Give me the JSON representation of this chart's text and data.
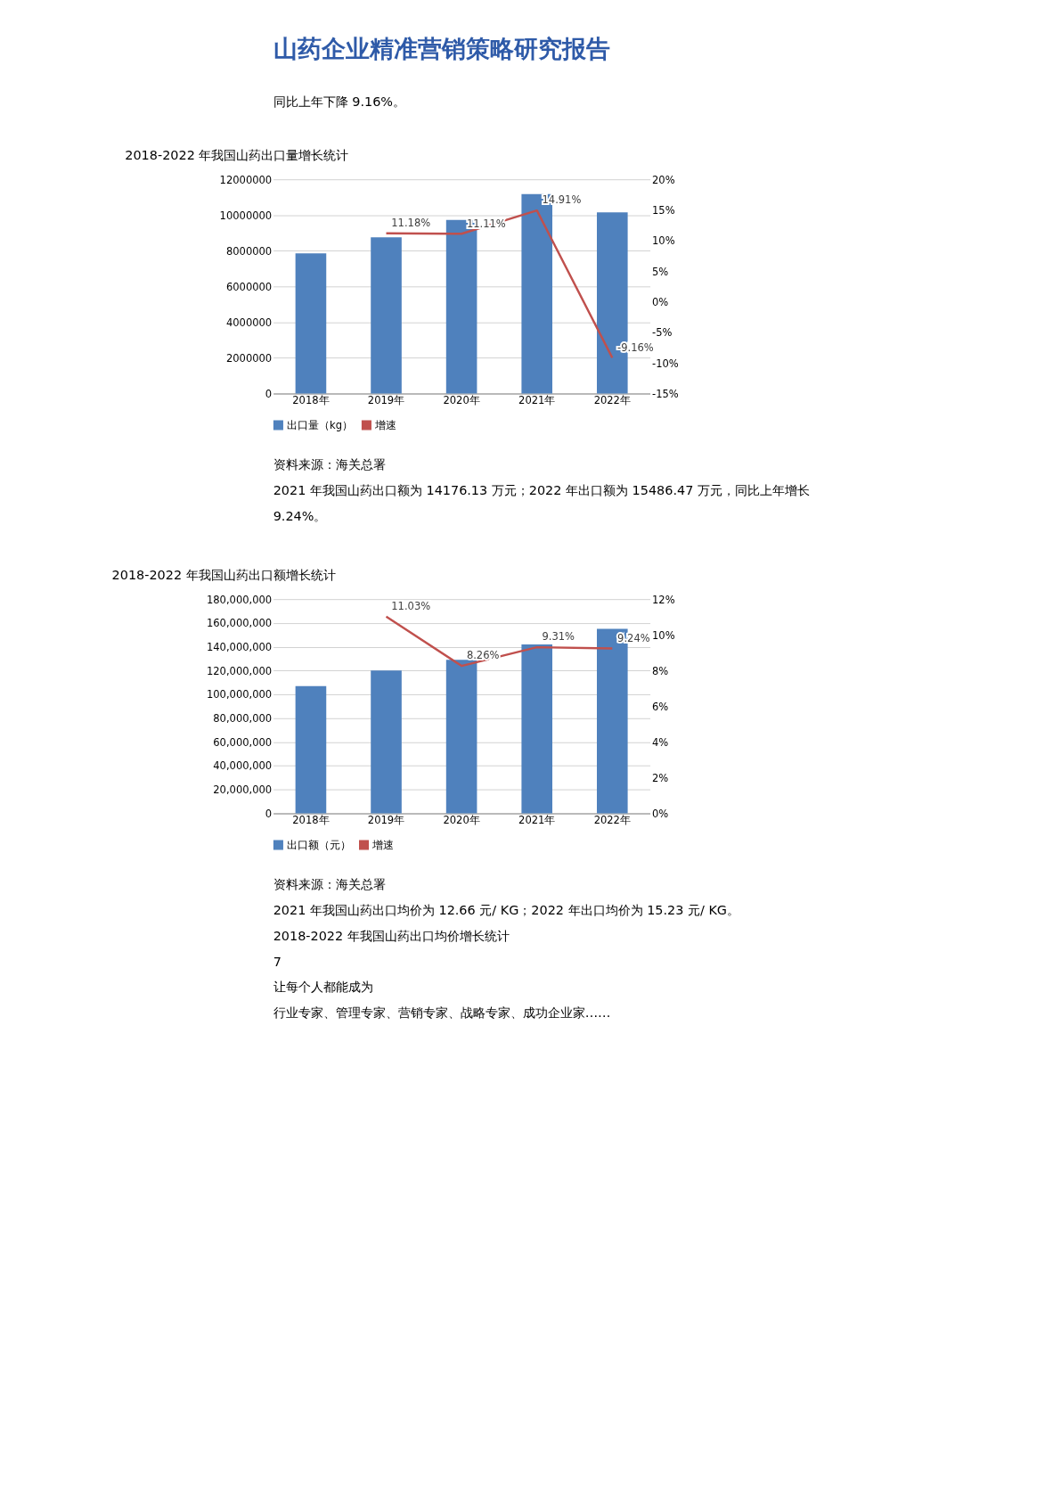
{
  "chart_data": [
    {
      "type": "other",
      "title": "山药企业精准营销策略研究报告",
      "annotations": [
        "同比上年下降 9.16%。"
      ]
    },
    {
      "type": "bar",
      "title": "2018-2022 年我国山药出口量增长统计",
      "categories": [
        "2018年",
        "2019年",
        "2020年",
        "2021年",
        "2022年"
      ],
      "series": [
        {
          "name": "出口量（kg）",
          "color": "#4f81bd",
          "values": [
            7850000,
            8750000,
            9720000,
            11170000,
            10150000
          ]
        },
        {
          "name": "增速",
          "type": "line",
          "axis": "y2",
          "color": "#c0504d",
          "values": [
            null,
            11.18,
            11.11,
            14.91,
            -9.16
          ],
          "value_labels": [
            null,
            "11.18%",
            "11.11%",
            "14.91%",
            "-9.16%"
          ]
        }
      ],
      "ylim": [
        0,
        12000000
      ],
      "yticks": [
        0,
        2000000,
        4000000,
        6000000,
        8000000,
        10000000,
        12000000
      ],
      "y2lim": [
        -15,
        20
      ],
      "y2ticks": [
        {
          "value": -15,
          "label": "-15%"
        },
        {
          "value": -10,
          "label": "-10%"
        },
        {
          "value": -5,
          "label": "-5%"
        },
        {
          "value": 0,
          "label": "0%"
        },
        {
          "value": 5,
          "label": "5%"
        },
        {
          "value": 10,
          "label": "10%"
        },
        {
          "value": 15,
          "label": "15%"
        },
        {
          "value": 20,
          "label": "20%"
        }
      ],
      "grid": "y",
      "legend": "bottom",
      "marker": "none",
      "annotations": [
        "资料来源：海关总署",
        "2021 年我国山药出口额为 14176.13 万元；2022 年出口额为 15486.47 万元，同比上年增长",
        "9.24%。"
      ]
    },
    {
      "type": "bar",
      "title": "2018-2022 年我国山药出口额增长统计",
      "categories": [
        "2018年",
        "2019年",
        "2020年",
        "2021年",
        "2022年"
      ],
      "series": [
        {
          "name": "出口额（元）",
          "color": "#4f81bd",
          "values": [
            107000000,
            120000000,
            129000000,
            142000000,
            155000000
          ]
        },
        {
          "name": "增速",
          "type": "line",
          "axis": "y2",
          "color": "#c0504d",
          "values": [
            null,
            11.03,
            8.26,
            9.31,
            9.24
          ],
          "value_labels": [
            null,
            "11.03%",
            "8.26%",
            "9.31%",
            "9.24%"
          ]
        }
      ],
      "ylim": [
        0,
        180000000
      ],
      "yticks": [
        0,
        {
          "value": 20000000,
          "label": "20,000,000"
        },
        {
          "value": 40000000,
          "label": "40,000,000"
        },
        {
          "value": 60000000,
          "label": "60,000,000"
        },
        {
          "value": 80000000,
          "label": "80,000,000"
        },
        {
          "value": 100000000,
          "label": "100,000,000"
        },
        {
          "value": 120000000,
          "label": "120,000,000"
        },
        {
          "value": 140000000,
          "label": "140,000,000"
        },
        {
          "value": 160000000,
          "label": "160,000,000"
        },
        {
          "value": 180000000,
          "label": "180,000,000"
        }
      ],
      "y2lim": [
        0,
        12
      ],
      "y2ticks": [
        {
          "value": 0,
          "label": "0%"
        },
        {
          "value": 2,
          "label": "2%"
        },
        {
          "value": 4,
          "label": "4%"
        },
        {
          "value": 6,
          "label": "6%"
        },
        {
          "value": 8,
          "label": "8%"
        },
        {
          "value": 10,
          "label": "10%"
        },
        {
          "value": 12,
          "label": "12%"
        }
      ],
      "grid": "y",
      "legend": "bottom",
      "marker": "none",
      "annotations": [
        "资料来源：海关总署",
        "2021 年我国山药出口均价为 12.66 元/ KG；2022 年出口均价为 15.23 元/ KG。",
        "2018-2022 年我国山药出口均价增长统计",
        "7",
        "让每个人都能成为",
        "行业专家、管理专家、营销专家、战略专家、成功企业家……"
      ]
    }
  ]
}
